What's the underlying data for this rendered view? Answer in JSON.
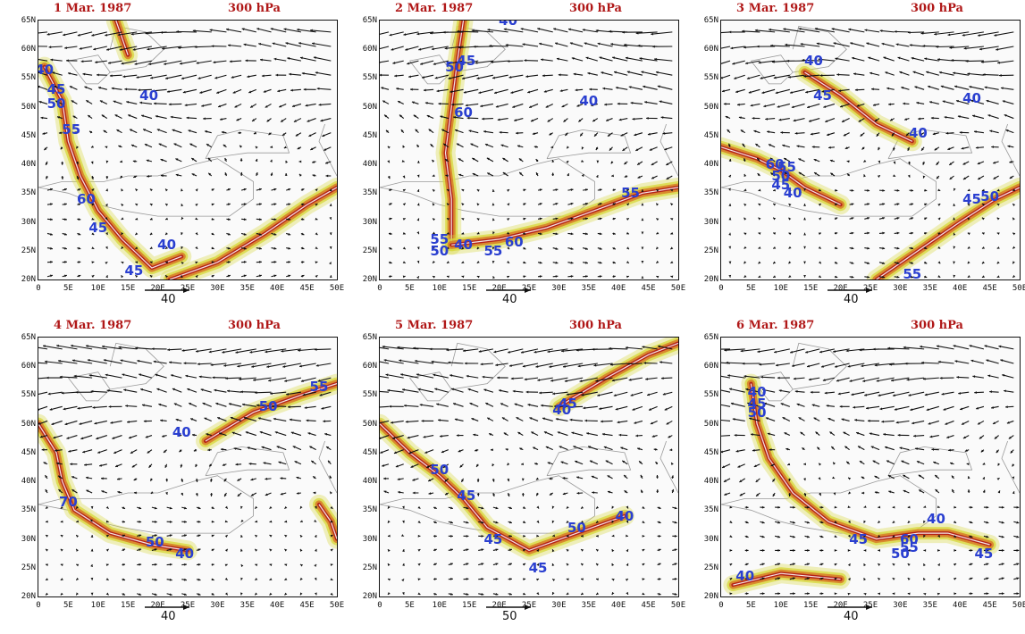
{
  "level_label": "300 hPa",
  "y_labels": [
    "65N",
    "60N",
    "55N",
    "50N",
    "45N",
    "40N",
    "35N",
    "30N",
    "25N",
    "20N"
  ],
  "x_labels": [
    "0",
    "5E",
    "10E",
    "15E",
    "20E",
    "25E",
    "30E",
    "35E",
    "40E",
    "45E",
    "50E"
  ],
  "colors": {
    "contour_high": "#b01818",
    "contour_mid": "#d8802a",
    "contour_low": "#d8d840",
    "contour_label": "#2a3fd0",
    "vector": "#111111",
    "coast": "#9a9a9a"
  },
  "panels": [
    {
      "date": "1 Mar. 1987",
      "ref_vector": "40",
      "labels": [
        {
          "text": "40",
          "lon": 1,
          "lat": 56.5
        },
        {
          "text": "45",
          "lon": 3,
          "lat": 53
        },
        {
          "text": "50",
          "lon": 3,
          "lat": 50.5
        },
        {
          "text": "40",
          "lon": 18.5,
          "lat": 52
        },
        {
          "text": "55",
          "lon": 5.5,
          "lat": 46
        },
        {
          "text": "60",
          "lon": 8,
          "lat": 34
        },
        {
          "text": "45",
          "lon": 10,
          "lat": 29
        },
        {
          "text": "40",
          "lon": 21.5,
          "lat": 26
        },
        {
          "text": "45",
          "lon": 16,
          "lat": 21.5
        }
      ]
    },
    {
      "date": "2 Mar. 1987",
      "ref_vector": "40",
      "labels": [
        {
          "text": "40",
          "lon": 21.5,
          "lat": 65
        },
        {
          "text": "45",
          "lon": 14.5,
          "lat": 58
        },
        {
          "text": "50",
          "lon": 12.5,
          "lat": 57
        },
        {
          "text": "60",
          "lon": 14,
          "lat": 49
        },
        {
          "text": "40",
          "lon": 35,
          "lat": 51
        },
        {
          "text": "55",
          "lon": 42,
          "lat": 35
        },
        {
          "text": "55",
          "lon": 10,
          "lat": 27
        },
        {
          "text": "50",
          "lon": 10,
          "lat": 25
        },
        {
          "text": "40",
          "lon": 14,
          "lat": 26
        },
        {
          "text": "55",
          "lon": 19,
          "lat": 25
        },
        {
          "text": "60",
          "lon": 22.5,
          "lat": 26.5
        }
      ]
    },
    {
      "date": "3 Mar. 1987",
      "ref_vector": "40",
      "labels": [
        {
          "text": "40",
          "lon": 15.5,
          "lat": 58
        },
        {
          "text": "45",
          "lon": 17,
          "lat": 52
        },
        {
          "text": "40",
          "lon": 42,
          "lat": 51.5
        },
        {
          "text": "40",
          "lon": 33,
          "lat": 45.5
        },
        {
          "text": "60",
          "lon": 9,
          "lat": 40
        },
        {
          "text": "55",
          "lon": 11,
          "lat": 39.5
        },
        {
          "text": "50",
          "lon": 10,
          "lat": 38
        },
        {
          "text": "45",
          "lon": 10,
          "lat": 36.5
        },
        {
          "text": "40",
          "lon": 12,
          "lat": 35
        },
        {
          "text": "45",
          "lon": 42,
          "lat": 34
        },
        {
          "text": "50",
          "lon": 45,
          "lat": 34.5
        },
        {
          "text": "55",
          "lon": 32,
          "lat": 21
        }
      ]
    },
    {
      "date": "4 Mar. 1987",
      "ref_vector": "40",
      "labels": [
        {
          "text": "55",
          "lon": 47,
          "lat": 56.5
        },
        {
          "text": "50",
          "lon": 38.5,
          "lat": 53
        },
        {
          "text": "40",
          "lon": 24,
          "lat": 48.5
        },
        {
          "text": "70",
          "lon": 5,
          "lat": 36.5
        },
        {
          "text": "50",
          "lon": 19.5,
          "lat": 29.5
        },
        {
          "text": "40",
          "lon": 24.5,
          "lat": 27.5
        }
      ]
    },
    {
      "date": "5 Mar. 1987",
      "ref_vector": "50",
      "labels": [
        {
          "text": "45",
          "lon": 31.5,
          "lat": 53.5
        },
        {
          "text": "40",
          "lon": 30.5,
          "lat": 52.5
        },
        {
          "text": "50",
          "lon": 10,
          "lat": 42
        },
        {
          "text": "45",
          "lon": 14.5,
          "lat": 37.5
        },
        {
          "text": "40",
          "lon": 41,
          "lat": 34
        },
        {
          "text": "50",
          "lon": 33,
          "lat": 32
        },
        {
          "text": "45",
          "lon": 19,
          "lat": 30
        },
        {
          "text": "45",
          "lon": 26.5,
          "lat": 25
        }
      ]
    },
    {
      "date": "6 Mar. 1987",
      "ref_vector": "40",
      "labels": [
        {
          "text": "40",
          "lon": 6,
          "lat": 55.5
        },
        {
          "text": "45",
          "lon": 6,
          "lat": 53.5
        },
        {
          "text": "50",
          "lon": 6,
          "lat": 52
        },
        {
          "text": "40",
          "lon": 36,
          "lat": 33.5
        },
        {
          "text": "45",
          "lon": 23,
          "lat": 30
        },
        {
          "text": "60",
          "lon": 31.5,
          "lat": 30
        },
        {
          "text": "55",
          "lon": 31.5,
          "lat": 28.5
        },
        {
          "text": "50",
          "lon": 30,
          "lat": 27.5
        },
        {
          "text": "45",
          "lon": 44,
          "lat": 27.5
        },
        {
          "text": "40",
          "lon": 4,
          "lat": 23.5
        }
      ]
    }
  ]
}
